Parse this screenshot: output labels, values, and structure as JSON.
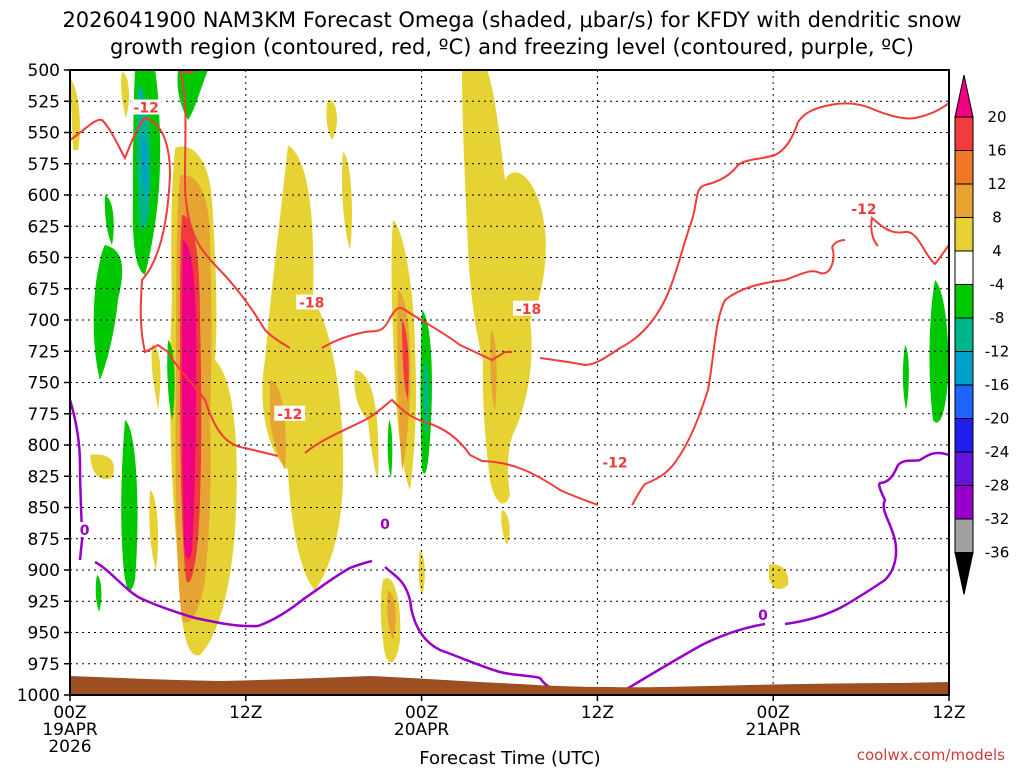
{
  "chart_data": {
    "type": "heatmap",
    "title_line1": "2026041900 NAM3KM Forecast Omega (shaded, μbar/s) for KFDY with dendritic snow",
    "title_line2": "growth region (contoured, red, ºC) and freezing level (contoured, purple, ºC)",
    "xlabel": "Forecast Time (UTC)",
    "credit": "coolwx.com/models",
    "y_levels": [
      "500",
      "525",
      "550",
      "575",
      "600",
      "625",
      "650",
      "675",
      "700",
      "725",
      "750",
      "775",
      "800",
      "825",
      "850",
      "875",
      "900",
      "925",
      "950",
      "975",
      "1000"
    ],
    "x_hour_range": [
      0,
      60
    ],
    "x_ticks": [
      {
        "hour": 0,
        "lines": [
          "00Z",
          "19APR",
          "2026"
        ]
      },
      {
        "hour": 12,
        "lines": [
          "12Z"
        ]
      },
      {
        "hour": 24,
        "lines": [
          "00Z",
          "20APR"
        ]
      },
      {
        "hour": 36,
        "lines": [
          "12Z"
        ]
      },
      {
        "hour": 48,
        "lines": [
          "00Z",
          "21APR"
        ]
      },
      {
        "hour": 60,
        "lines": [
          "12Z"
        ]
      }
    ],
    "colorbar": {
      "labels": [
        "20",
        "16",
        "12",
        "8",
        "4",
        "-4",
        "-8",
        "-12",
        "-16",
        "-20",
        "-24",
        "-28",
        "-32",
        "-36"
      ],
      "colors": [
        "#f00082",
        "#f03c3c",
        "#f07828",
        "#e6a532",
        "#e6d232",
        "#ffffff",
        "#00c800",
        "#00b48c",
        "#00a0c8",
        "#1e64ff",
        "#1e1ef0",
        "#6414dc",
        "#9600c8",
        "#a0a0a0"
      ]
    },
    "contour_labels": [
      {
        "text": "-12",
        "hour": 5.2,
        "level": 530,
        "color": "#f03c3c"
      },
      {
        "text": "-18",
        "hour": 16.5,
        "level": 686,
        "color": "#f03c3c"
      },
      {
        "text": "-18",
        "hour": 31.3,
        "level": 691,
        "color": "#f03c3c"
      },
      {
        "text": "-12",
        "hour": 15.0,
        "level": 775,
        "color": "#f03c3c"
      },
      {
        "text": "-12",
        "hour": 37.2,
        "level": 814,
        "color": "#f03c3c"
      },
      {
        "text": "-12",
        "hour": 54.2,
        "level": 611,
        "color": "#f03c3c"
      },
      {
        "text": "0",
        "hour": 1.0,
        "level": 868,
        "color": "#9600c8"
      },
      {
        "text": "0",
        "hour": 21.5,
        "level": 863,
        "color": "#9600c8"
      },
      {
        "text": "0",
        "hour": 47.3,
        "level": 936,
        "color": "#9600c8"
      }
    ]
  }
}
